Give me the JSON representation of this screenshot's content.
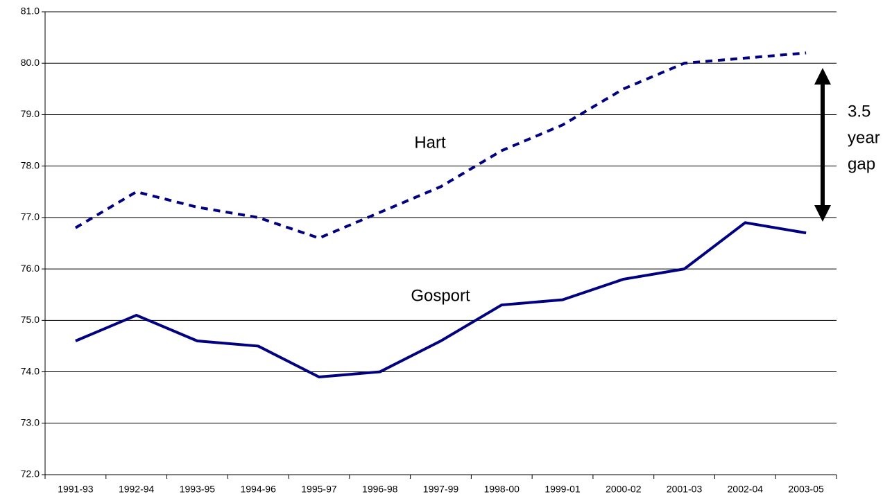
{
  "chart_data": {
    "type": "line",
    "categories": [
      "1991-93",
      "1992-94",
      "1993-95",
      "1994-96",
      "1995-97",
      "1996-98",
      "1997-99",
      "1998-00",
      "1999-01",
      "2000-02",
      "2001-03",
      "2002-04",
      "2003-05"
    ],
    "series": [
      {
        "name": "Hart",
        "color": "#000080",
        "dash": true,
        "values": [
          76.8,
          77.5,
          77.2,
          77.0,
          76.6,
          77.1,
          77.6,
          78.3,
          78.8,
          79.5,
          80.0,
          80.1,
          80.2
        ]
      },
      {
        "name": "Gosport",
        "color": "#000080",
        "dash": false,
        "values": [
          74.6,
          75.1,
          74.6,
          74.5,
          73.9,
          74.0,
          74.6,
          75.3,
          75.4,
          75.8,
          76.0,
          76.9,
          76.7
        ]
      }
    ],
    "ylim": [
      72,
      81
    ],
    "yticks": [
      {
        "value": 72,
        "label": "72.0"
      },
      {
        "value": 73,
        "label": "73.0"
      },
      {
        "value": 74,
        "label": "74.0"
      },
      {
        "value": 75,
        "label": "75.0"
      },
      {
        "value": 76,
        "label": "76.0"
      },
      {
        "value": 77,
        "label": "77.0"
      },
      {
        "value": 78,
        "label": "78.0"
      },
      {
        "value": 79,
        "label": "79.0"
      },
      {
        "value": 80,
        "label": "80.0"
      },
      {
        "value": 81,
        "label": "81.0"
      }
    ],
    "grid": true,
    "annotation": [
      "3.5",
      "year",
      "gap"
    ]
  }
}
